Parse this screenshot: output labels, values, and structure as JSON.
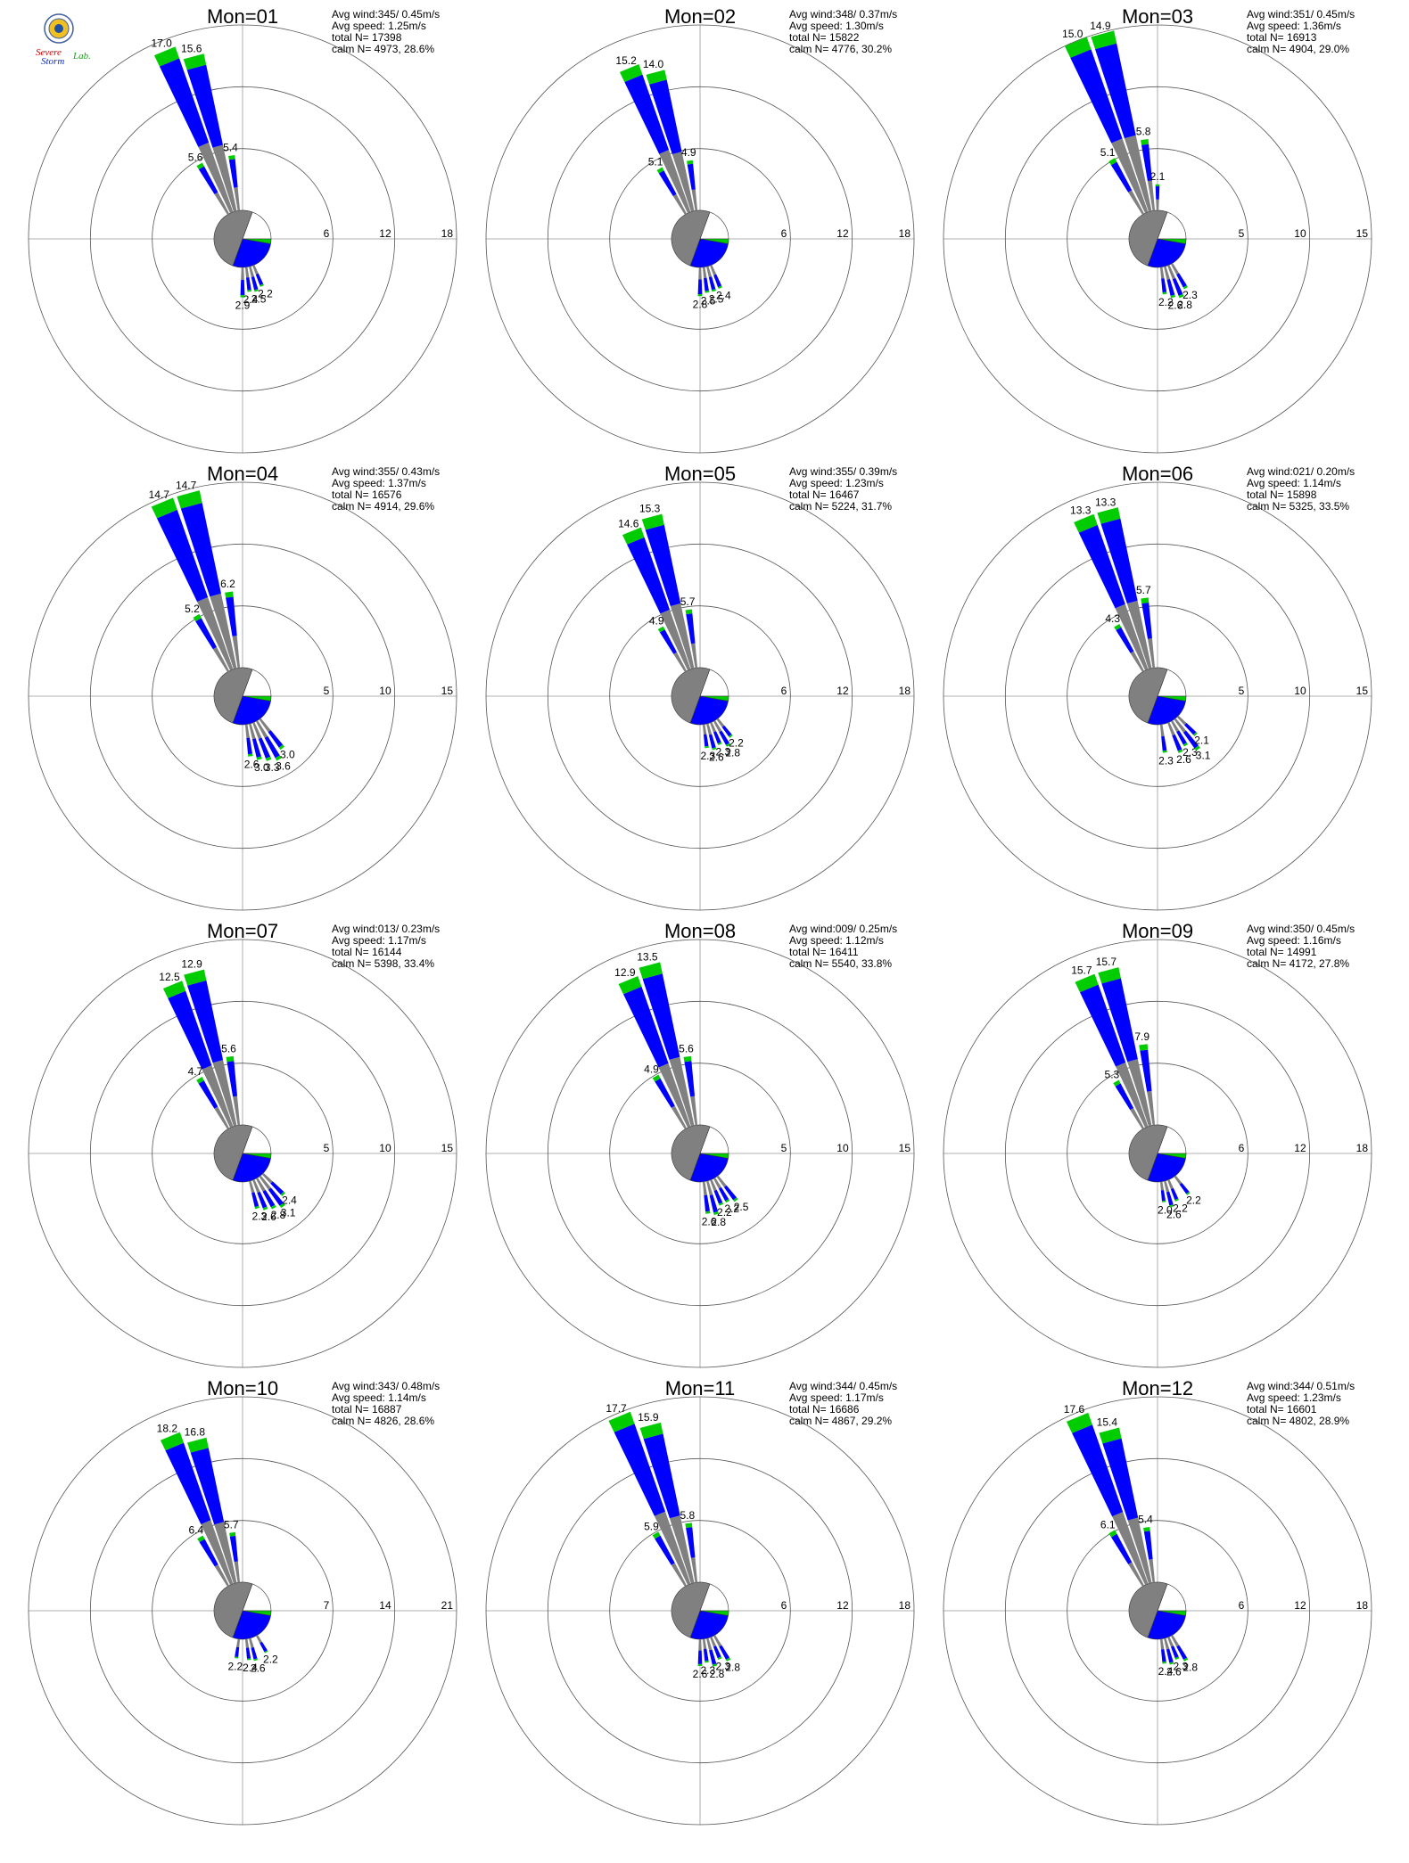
{
  "logo": {
    "text_a": "Severe",
    "text_b": "Storm",
    "text_c": "Lab.",
    "colors": {
      "a": "#d00000",
      "b": "#1030c0",
      "c": "#20a020"
    }
  },
  "colors": {
    "gray": "#808080",
    "blue": "#0000ff",
    "green": "#00cc00",
    "ring": "#000000"
  },
  "chart_data": [
    {
      "type": "wind-rose",
      "title": "Mon=01",
      "stats": {
        "avg_wind": "Avg wind:345/ 0.45m/s",
        "avg_speed": "Avg speed: 1.25m/s",
        "total": "total N=      17398",
        "calm": "calm N=   4973,  28.6%"
      },
      "ring_values": [
        6,
        12,
        18
      ],
      "rmax": 18,
      "labeled_bars": [
        {
          "dir": 337.5,
          "value": 17.0,
          "label": "17.0"
        },
        {
          "dir": 345,
          "value": 15.6,
          "label": "15.6"
        },
        {
          "dir": 330,
          "value": 5.6,
          "label": "5.6"
        },
        {
          "dir": 352.5,
          "value": 5.4,
          "label": "5.4"
        },
        {
          "dir": 172.5,
          "value": 2.4,
          "label": "2.4"
        },
        {
          "dir": 180,
          "value": 2.9,
          "label": "2.9"
        },
        {
          "dir": 165,
          "value": 2.5,
          "label": "2.5"
        },
        {
          "dir": 157.5,
          "value": 2.2,
          "label": "2.2"
        }
      ]
    },
    {
      "type": "wind-rose",
      "title": "Mon=02",
      "stats": {
        "avg_wind": "Avg wind:348/ 0.37m/s",
        "avg_speed": "Avg speed: 1.30m/s",
        "total": "total N=      15822",
        "calm": "calm N=   4776,  30.2%"
      },
      "ring_values": [
        6,
        12,
        18
      ],
      "rmax": 18,
      "labeled_bars": [
        {
          "dir": 337.5,
          "value": 15.2,
          "label": "15.2"
        },
        {
          "dir": 345,
          "value": 14.0,
          "label": "14.0"
        },
        {
          "dir": 330,
          "value": 5.1,
          "label": "5.1"
        },
        {
          "dir": 352.5,
          "value": 4.9,
          "label": "4.9"
        },
        {
          "dir": 172.5,
          "value": 2.5,
          "label": "2.5"
        },
        {
          "dir": 180,
          "value": 2.8,
          "label": "2.8"
        },
        {
          "dir": 165,
          "value": 2.5,
          "label": "2.5"
        },
        {
          "dir": 157.5,
          "value": 2.4,
          "label": "2.4"
        }
      ]
    },
    {
      "type": "wind-rose",
      "title": "Mon=03",
      "stats": {
        "avg_wind": "Avg wind:351/ 0.45m/s",
        "avg_speed": "Avg speed: 1.36m/s",
        "total": "total N=      16913",
        "calm": "calm N=   4904,  29.0%"
      },
      "ring_values": [
        5,
        10,
        15
      ],
      "rmax": 15,
      "labeled_bars": [
        {
          "dir": 337.5,
          "value": 15.0,
          "label": "15.0"
        },
        {
          "dir": 345,
          "value": 14.9,
          "label": "14.9"
        },
        {
          "dir": 330,
          "value": 5.1,
          "label": "5.1"
        },
        {
          "dir": 352.5,
          "value": 5.8,
          "label": "5.8"
        },
        {
          "dir": 0,
          "value": 2.1,
          "label": "2.1"
        },
        {
          "dir": 172.5,
          "value": 2.2,
          "label": "2.2"
        },
        {
          "dir": 165,
          "value": 2.6,
          "label": "2.6"
        },
        {
          "dir": 157.5,
          "value": 2.8,
          "label": "2.8"
        },
        {
          "dir": 150,
          "value": 2.3,
          "label": "2.3"
        }
      ]
    },
    {
      "type": "wind-rose",
      "title": "Mon=04",
      "stats": {
        "avg_wind": "Avg wind:355/ 0.43m/s",
        "avg_speed": "Avg speed: 1.37m/s",
        "total": "total N=      16576",
        "calm": "calm N=   4914,  29.6%"
      },
      "ring_values": [
        5,
        10,
        15
      ],
      "rmax": 15,
      "labeled_bars": [
        {
          "dir": 337.5,
          "value": 14.7,
          "label": "14.7"
        },
        {
          "dir": 345,
          "value": 14.7,
          "label": "14.7"
        },
        {
          "dir": 330,
          "value": 5.2,
          "label": "5.2"
        },
        {
          "dir": 352.5,
          "value": 6.2,
          "label": "6.2"
        },
        {
          "dir": 172.5,
          "value": 2.6,
          "label": "2.6"
        },
        {
          "dir": 165,
          "value": 3.0,
          "label": "3.0"
        },
        {
          "dir": 157.5,
          "value": 3.3,
          "label": "3.3"
        },
        {
          "dir": 150,
          "value": 3.6,
          "label": "3.6"
        },
        {
          "dir": 142.5,
          "value": 3.0,
          "label": "3.0"
        }
      ]
    },
    {
      "type": "wind-rose",
      "title": "Mon=05",
      "stats": {
        "avg_wind": "Avg wind:355/ 0.39m/s",
        "avg_speed": "Avg speed: 1.23m/s",
        "total": "total N=      16467",
        "calm": "calm N=   5224,  31.7%"
      },
      "ring_values": [
        6,
        12,
        18
      ],
      "rmax": 18,
      "labeled_bars": [
        {
          "dir": 337.5,
          "value": 14.6,
          "label": "14.6"
        },
        {
          "dir": 345,
          "value": 15.3,
          "label": "15.3"
        },
        {
          "dir": 330,
          "value": 4.9,
          "label": "4.9"
        },
        {
          "dir": 352.5,
          "value": 5.7,
          "label": "5.7"
        },
        {
          "dir": 172.5,
          "value": 2.3,
          "label": "2.3"
        },
        {
          "dir": 165,
          "value": 2.6,
          "label": "2.6"
        },
        {
          "dir": 157.5,
          "value": 2.3,
          "label": "2.3"
        },
        {
          "dir": 150,
          "value": 2.8,
          "label": "2.8"
        },
        {
          "dir": 142.5,
          "value": 2.2,
          "label": "2.2"
        }
      ]
    },
    {
      "type": "wind-rose",
      "title": "Mon=06",
      "stats": {
        "avg_wind": "Avg wind:021/ 0.20m/s",
        "avg_speed": "Avg speed: 1.14m/s",
        "total": "total N=      15898",
        "calm": "calm N=   5325,  33.5%"
      },
      "ring_values": [
        5,
        10,
        15
      ],
      "rmax": 15,
      "labeled_bars": [
        {
          "dir": 337.5,
          "value": 13.3,
          "label": "13.3"
        },
        {
          "dir": 345,
          "value": 13.3,
          "label": "13.3"
        },
        {
          "dir": 330,
          "value": 4.3,
          "label": "4.3"
        },
        {
          "dir": 352.5,
          "value": 5.7,
          "label": "5.7"
        },
        {
          "dir": 172.5,
          "value": 2.3,
          "label": "2.3"
        },
        {
          "dir": 157.5,
          "value": 2.6,
          "label": "2.6"
        },
        {
          "dir": 150,
          "value": 2.3,
          "label": "2.3"
        },
        {
          "dir": 142.5,
          "value": 3.1,
          "label": "3.1"
        },
        {
          "dir": 135,
          "value": 2.1,
          "label": "2.1"
        }
      ]
    },
    {
      "type": "wind-rose",
      "title": "Mon=07",
      "stats": {
        "avg_wind": "Avg wind:013/ 0.23m/s",
        "avg_speed": "Avg speed: 1.17m/s",
        "total": "total N=      16144",
        "calm": "calm N=   5398,  33.4%"
      },
      "ring_values": [
        5,
        10,
        15
      ],
      "rmax": 15,
      "labeled_bars": [
        {
          "dir": 337.5,
          "value": 12.5,
          "label": "12.5"
        },
        {
          "dir": 345,
          "value": 12.9,
          "label": "12.9"
        },
        {
          "dir": 330,
          "value": 4.7,
          "label": "4.7"
        },
        {
          "dir": 352.5,
          "value": 5.6,
          "label": "5.6"
        },
        {
          "dir": 165,
          "value": 2.3,
          "label": "2.3"
        },
        {
          "dir": 157.5,
          "value": 2.6,
          "label": "2.6"
        },
        {
          "dir": 150,
          "value": 2.8,
          "label": "2.8"
        },
        {
          "dir": 142.5,
          "value": 3.1,
          "label": "3.1"
        },
        {
          "dir": 135,
          "value": 2.4,
          "label": "2.4"
        }
      ]
    },
    {
      "type": "wind-rose",
      "title": "Mon=08",
      "stats": {
        "avg_wind": "Avg wind:009/ 0.25m/s",
        "avg_speed": "Avg speed: 1.12m/s",
        "total": "total N=      16411",
        "calm": "calm N=   5540,  33.8%"
      },
      "ring_values": [
        5,
        10,
        15
      ],
      "rmax": 15,
      "labeled_bars": [
        {
          "dir": 337.5,
          "value": 12.9,
          "label": "12.9"
        },
        {
          "dir": 345,
          "value": 13.5,
          "label": "13.5"
        },
        {
          "dir": 330,
          "value": 4.9,
          "label": "4.9"
        },
        {
          "dir": 352.5,
          "value": 5.6,
          "label": "5.6"
        },
        {
          "dir": 172.5,
          "value": 2.6,
          "label": "2.6"
        },
        {
          "dir": 165,
          "value": 2.8,
          "label": "2.8"
        },
        {
          "dir": 157.5,
          "value": 2.2,
          "label": "2.2"
        },
        {
          "dir": 150,
          "value": 2.2,
          "label": "2.2"
        },
        {
          "dir": 142.5,
          "value": 2.5,
          "label": "2.5"
        }
      ]
    },
    {
      "type": "wind-rose",
      "title": "Mon=09",
      "stats": {
        "avg_wind": "Avg wind:350/ 0.45m/s",
        "avg_speed": "Avg speed: 1.16m/s",
        "total": "total N=      14991",
        "calm": "calm N=   4172,  27.8%"
      },
      "ring_values": [
        6,
        12,
        18
      ],
      "rmax": 18,
      "labeled_bars": [
        {
          "dir": 337.5,
          "value": 15.7,
          "label": "15.7"
        },
        {
          "dir": 345,
          "value": 15.7,
          "label": "15.7"
        },
        {
          "dir": 330,
          "value": 5.3,
          "label": "5.3"
        },
        {
          "dir": 352.5,
          "value": 7.9,
          "label": "7.9"
        },
        {
          "dir": 172.5,
          "value": 2.0,
          "label": "2.0"
        },
        {
          "dir": 165,
          "value": 2.6,
          "label": "2.6"
        },
        {
          "dir": 157.5,
          "value": 2.2,
          "label": "2.2"
        },
        {
          "dir": 142.5,
          "value": 2.2,
          "label": "2.2"
        }
      ]
    },
    {
      "type": "wind-rose",
      "title": "Mon=10",
      "stats": {
        "avg_wind": "Avg wind:343/ 0.48m/s",
        "avg_speed": "Avg speed: 1.14m/s",
        "total": "total N=      16887",
        "calm": "calm N=   4826,  28.6%"
      },
      "ring_values": [
        7,
        14,
        21
      ],
      "rmax": 21,
      "labeled_bars": [
        {
          "dir": 337.5,
          "value": 18.2,
          "label": "18.2"
        },
        {
          "dir": 345,
          "value": 16.8,
          "label": "16.8"
        },
        {
          "dir": 330,
          "value": 6.4,
          "label": "6.4"
        },
        {
          "dir": 352.5,
          "value": 5.7,
          "label": "5.7"
        },
        {
          "dir": 187.5,
          "value": 2.2,
          "label": "2.2"
        },
        {
          "dir": 172.5,
          "value": 2.4,
          "label": "2.4"
        },
        {
          "dir": 165,
          "value": 2.6,
          "label": "2.6"
        },
        {
          "dir": 150,
          "value": 2.2,
          "label": "2.2"
        }
      ]
    },
    {
      "type": "wind-rose",
      "title": "Mon=11",
      "stats": {
        "avg_wind": "Avg wind:344/ 0.45m/s",
        "avg_speed": "Avg speed: 1.17m/s",
        "total": "total N=      16686",
        "calm": "calm N=   4867,  29.2%"
      },
      "ring_values": [
        6,
        12,
        18
      ],
      "rmax": 18,
      "labeled_bars": [
        {
          "dir": 337.5,
          "value": 17.7,
          "label": "17.7"
        },
        {
          "dir": 345,
          "value": 15.9,
          "label": "15.9"
        },
        {
          "dir": 330,
          "value": 5.9,
          "label": "5.9"
        },
        {
          "dir": 352.5,
          "value": 5.8,
          "label": "5.8"
        },
        {
          "dir": 180,
          "value": 2.6,
          "label": "2.6"
        },
        {
          "dir": 172.5,
          "value": 2.3,
          "label": "2.3"
        },
        {
          "dir": 165,
          "value": 2.8,
          "label": "2.8"
        },
        {
          "dir": 157.5,
          "value": 2.3,
          "label": "2.3"
        },
        {
          "dir": 150,
          "value": 2.8,
          "label": "2.8"
        }
      ]
    },
    {
      "type": "wind-rose",
      "title": "Mon=12",
      "stats": {
        "avg_wind": "Avg wind:344/ 0.51m/s",
        "avg_speed": "Avg speed: 1.23m/s",
        "total": "total N=      16601",
        "calm": "calm N=   4802,  28.9%"
      },
      "ring_values": [
        6,
        12,
        18
      ],
      "rmax": 18,
      "labeled_bars": [
        {
          "dir": 337.5,
          "value": 17.6,
          "label": "17.6"
        },
        {
          "dir": 345,
          "value": 15.4,
          "label": "15.4"
        },
        {
          "dir": 330,
          "value": 6.1,
          "label": "6.1"
        },
        {
          "dir": 352.5,
          "value": 5.4,
          "label": "5.4"
        },
        {
          "dir": 172.5,
          "value": 2.4,
          "label": "2.4"
        },
        {
          "dir": 165,
          "value": 2.6,
          "label": "2.6"
        },
        {
          "dir": 157.5,
          "value": 2.3,
          "label": "2.3"
        },
        {
          "dir": 150,
          "value": 2.8,
          "label": "2.8"
        }
      ]
    }
  ]
}
